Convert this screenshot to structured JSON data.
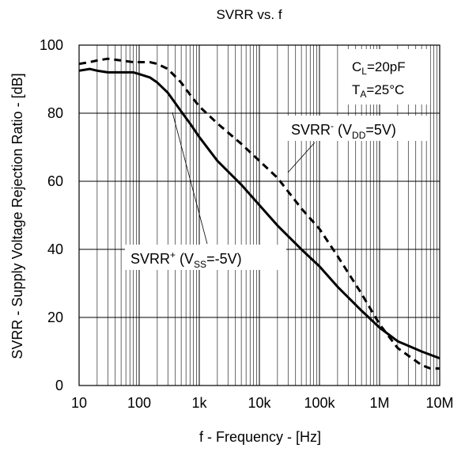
{
  "chart_data": {
    "type": "line",
    "title": "SVRR vs. f",
    "xlabel": "f - Frequency - [Hz]",
    "ylabel": "SVRR - Supply Voltage Rejection Ratio - [dB]",
    "x_scale": "log",
    "xlim": [
      10,
      10000000
    ],
    "ylim": [
      0,
      100
    ],
    "grid": true,
    "x_ticks": [
      {
        "value": 10,
        "label": "10"
      },
      {
        "value": 100,
        "label": "100"
      },
      {
        "value": 1000,
        "label": "1k"
      },
      {
        "value": 10000,
        "label": "10k"
      },
      {
        "value": 100000,
        "label": "100k"
      },
      {
        "value": 1000000,
        "label": "1M"
      },
      {
        "value": 10000000,
        "label": "10M"
      }
    ],
    "y_ticks": [
      0,
      20,
      40,
      60,
      80,
      100
    ],
    "conditions": {
      "cl_main": "C",
      "cl_sub": "L",
      "cl_value": "=20pF",
      "ta_main": "T",
      "ta_sub": "A",
      "ta_value": "=25°C"
    },
    "series": [
      {
        "label_main": "SVRR",
        "label_sup": "+",
        "label_cond": " (V",
        "label_sub": "SS",
        "label_val": "=-5V)",
        "style": "solid",
        "x": [
          10,
          15,
          20,
          30,
          50,
          80,
          100,
          150,
          200,
          300,
          500,
          700,
          1000,
          2000,
          5000,
          10000,
          20000,
          50000,
          100000,
          200000,
          500000,
          1000000,
          2000000,
          5000000,
          10000000
        ],
        "y": [
          92.5,
          93,
          92.5,
          92,
          92,
          92,
          91.5,
          90.5,
          89,
          86,
          80.5,
          77,
          73,
          66,
          59,
          53,
          47,
          40,
          35,
          29,
          22,
          17,
          13,
          10,
          8
        ]
      },
      {
        "label_main": "SVRR",
        "label_sup": "-",
        "label_cond": " (V",
        "label_sub": "DD",
        "label_val": "=5V)",
        "style": "dashed",
        "x": [
          10,
          15,
          20,
          30,
          50,
          80,
          100,
          150,
          200,
          300,
          500,
          700,
          1000,
          2000,
          5000,
          10000,
          20000,
          50000,
          100000,
          200000,
          500000,
          1000000,
          2000000,
          5000000,
          7000000,
          10000000
        ],
        "y": [
          94.5,
          95,
          95.5,
          96,
          95.5,
          95,
          95,
          95,
          94.5,
          93,
          89,
          85.5,
          82,
          77,
          71,
          66,
          61,
          52,
          46,
          38,
          27,
          18,
          11,
          6,
          5,
          5
        ]
      }
    ]
  }
}
